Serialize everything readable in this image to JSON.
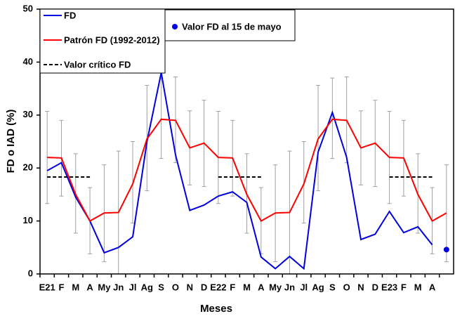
{
  "chart_data": {
    "type": "line",
    "xlabel": "Meses",
    "ylabel": "FD o IAD (%)",
    "categories": [
      "E21",
      "F",
      "M",
      "A",
      "My",
      "Jn",
      "Jl",
      "Ag",
      "S",
      "O",
      "N",
      "D",
      "E22",
      "F",
      "M",
      "A",
      "My",
      "Jn",
      "Jl",
      "Ag",
      "S",
      "O",
      "N",
      "D",
      "E23",
      "F",
      "M",
      "A",
      null
    ],
    "ylim": [
      0,
      50
    ],
    "yticks": [
      0,
      10,
      20,
      30,
      40,
      50
    ],
    "series": [
      {
        "name": "FD",
        "color": "#0000e0",
        "values": [
          19.5,
          21,
          14.5,
          10,
          4,
          5,
          7,
          25,
          38,
          22.5,
          12,
          13,
          14.7,
          15.5,
          13.5,
          3.2,
          1,
          3.3,
          1,
          23,
          30.5,
          22,
          6.5,
          7.5,
          11.8,
          7.8,
          8.9,
          5.5,
          null
        ]
      },
      {
        "name": "Patrón FD (1992-2012)",
        "color": "#ff0000",
        "error_color": "#a0a0a0",
        "values": [
          22,
          21.9,
          15,
          10,
          11.5,
          11.6,
          17,
          25.5,
          29.2,
          29,
          23.8,
          24.7,
          22,
          21.9,
          15,
          10,
          11.5,
          11.6,
          17,
          25.5,
          29.2,
          29,
          23.8,
          24.7,
          22,
          21.9,
          15,
          10,
          11.5
        ],
        "error_low": [
          13.3,
          14.7,
          7.7,
          3.8,
          2.3,
          0,
          9.6,
          15.7,
          21.8,
          21,
          16.8,
          16.5,
          13.3,
          14.7,
          7.7,
          3.8,
          2.3,
          0,
          9.6,
          15.7,
          21.8,
          21,
          16.8,
          16.5,
          13.3,
          14.7,
          7.7,
          3.8,
          2.3
        ],
        "error_high": [
          30.7,
          29,
          22.7,
          16.3,
          20.6,
          23.2,
          25,
          35.6,
          37,
          37.2,
          30.8,
          32.8,
          30.7,
          29,
          22.7,
          16.3,
          20.6,
          23.2,
          25,
          35.6,
          37,
          37.2,
          30.8,
          32.8,
          30.7,
          29,
          22.7,
          16.3,
          20.6
        ]
      },
      {
        "name": "Valor crítico FD",
        "color": "#000000",
        "dashed": true,
        "values": [
          18.3,
          18.3,
          18.3,
          18.3,
          null,
          null,
          null,
          null,
          null,
          null,
          null,
          null,
          18.3,
          18.3,
          18.3,
          18.3,
          null,
          null,
          null,
          null,
          null,
          null,
          null,
          null,
          18.3,
          18.3,
          18.3,
          18.3,
          null
        ]
      },
      {
        "name": "Valor FD al 15 de mayo",
        "color": "#0000e0",
        "marker": "circle",
        "values": [
          null,
          null,
          null,
          null,
          null,
          null,
          null,
          null,
          null,
          null,
          null,
          null,
          null,
          null,
          null,
          null,
          null,
          null,
          null,
          null,
          null,
          null,
          null,
          null,
          null,
          null,
          null,
          null,
          4.6
        ]
      }
    ]
  }
}
